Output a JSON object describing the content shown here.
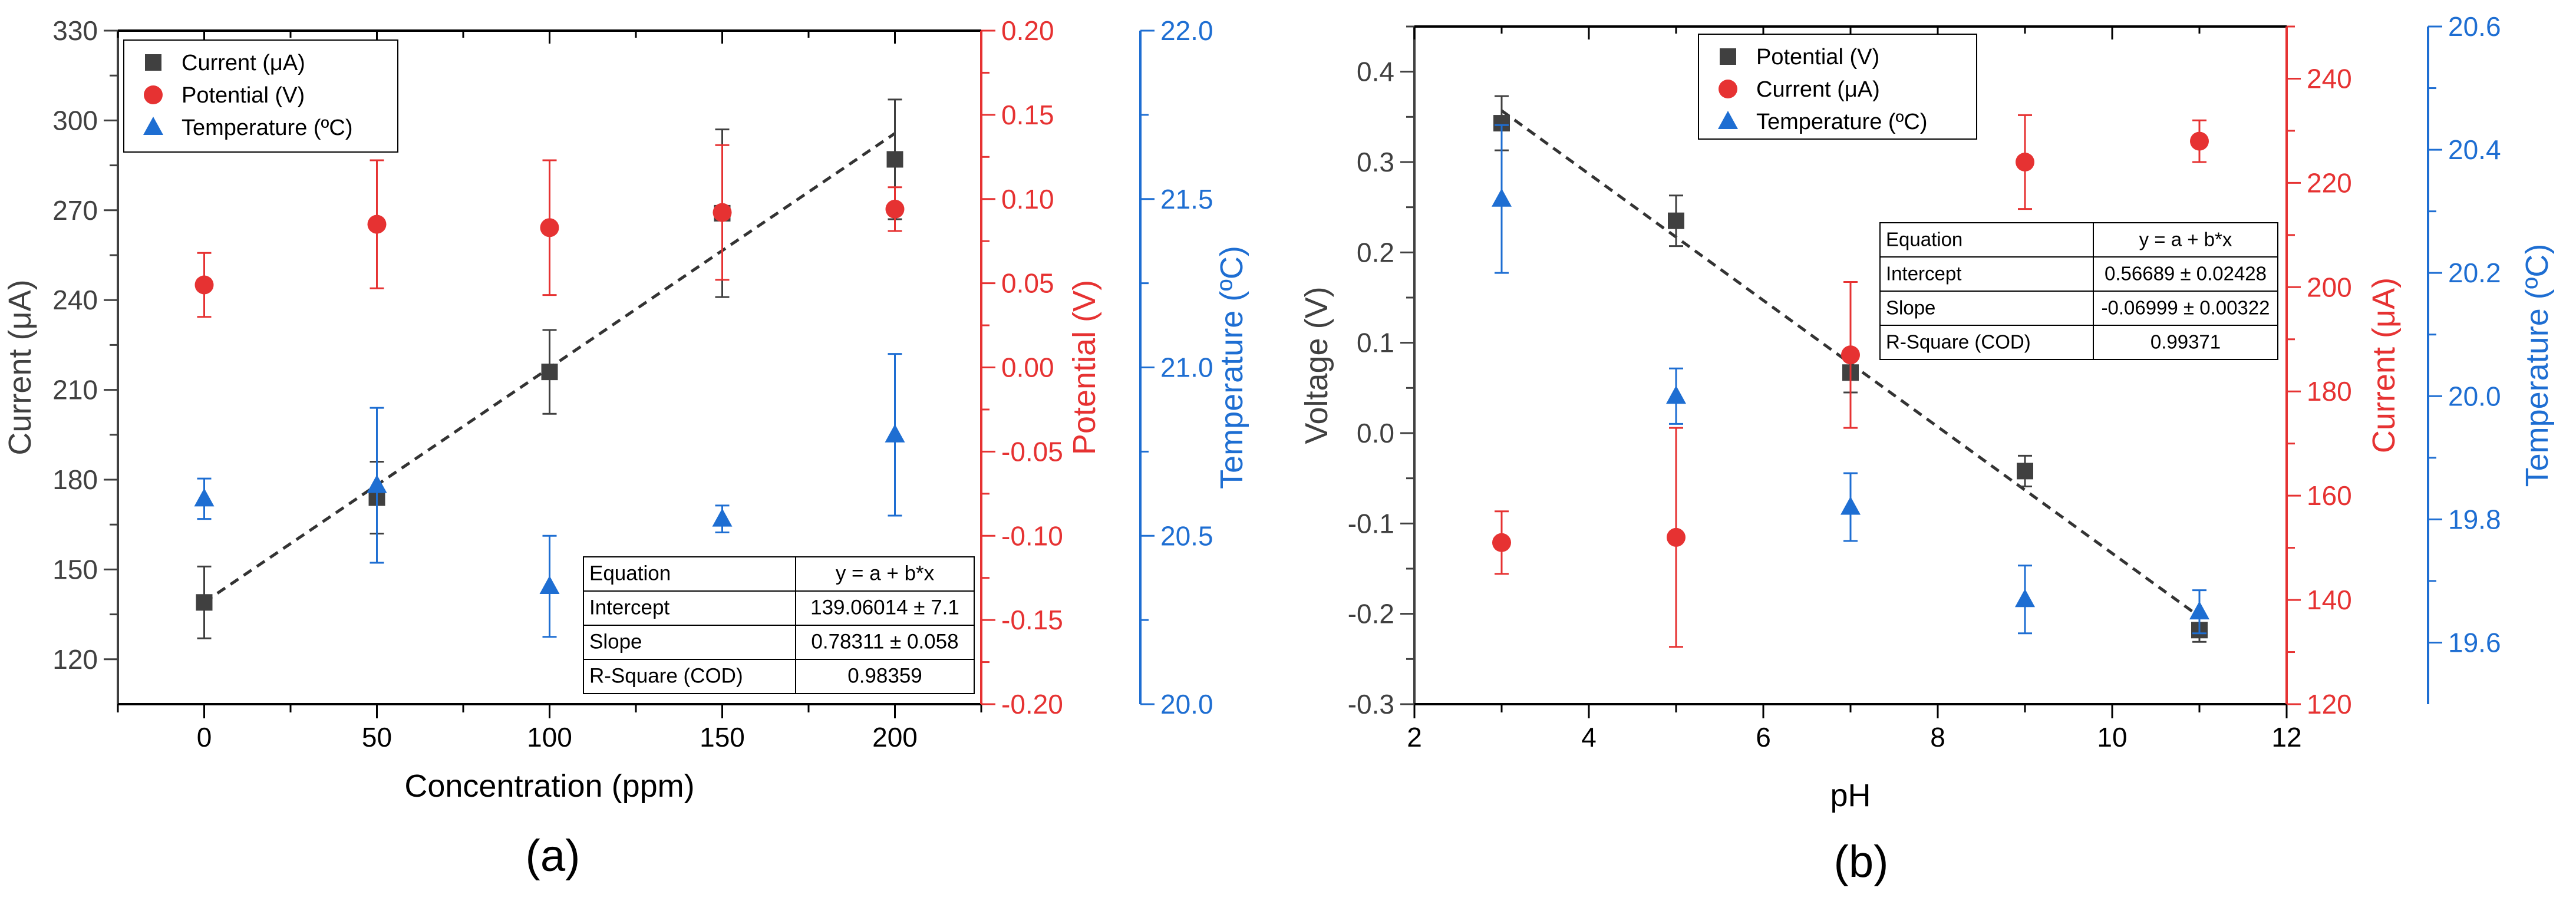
{
  "figure_labels": [
    "(a)",
    "(b)"
  ],
  "chart_data": [
    {
      "type": "scatter",
      "panel_label": "(a)",
      "xlabel": "Concentration (ppm)",
      "xlim": [
        -25,
        225
      ],
      "xticks": [
        0,
        50,
        100,
        150,
        200
      ],
      "x": [
        0,
        50,
        100,
        150,
        200
      ],
      "axes": {
        "left": {
          "label": "Current (μA)",
          "color": "#404040",
          "range": [
            105,
            330
          ],
          "ticks": [
            120,
            150,
            180,
            210,
            240,
            270,
            300,
            330
          ],
          "decimals": 0
        },
        "right1": {
          "label": "Potential (V)",
          "color": "#e63232",
          "range": [
            -0.2,
            0.2
          ],
          "ticks": [
            -0.2,
            -0.15,
            -0.1,
            -0.05,
            0,
            0.05,
            0.1,
            0.15,
            0.2
          ],
          "decimals": 2
        },
        "right2": {
          "label": "Temperature (ºC)",
          "color": "#1e6ed2",
          "range": [
            20.0,
            22.0
          ],
          "ticks": [
            20.0,
            20.5,
            21.0,
            21.5,
            22.0
          ],
          "decimals": 1
        }
      },
      "series": [
        {
          "name": "Current (μA)",
          "axis": "left",
          "marker": "square",
          "color": "#404040",
          "values": [
            139,
            174,
            216,
            269,
            287
          ],
          "errors": [
            12,
            12,
            14,
            28,
            20
          ]
        },
        {
          "name": "Potential (V)",
          "axis": "right1",
          "marker": "circle",
          "color": "#e63232",
          "values": [
            0.049,
            0.085,
            0.083,
            0.092,
            0.094
          ],
          "errors": [
            0.019,
            0.038,
            0.04,
            0.04,
            0.013
          ]
        },
        {
          "name": "Temperature (ºC)",
          "axis": "right2",
          "marker": "triangle",
          "color": "#1e6ed2",
          "values": [
            20.61,
            20.65,
            20.35,
            20.55,
            20.8
          ],
          "errors": [
            0.06,
            0.23,
            0.15,
            0.04,
            0.24
          ]
        }
      ],
      "fit": {
        "axis": "left",
        "x": [
          0,
          200
        ],
        "intercept": 139.06014,
        "slope": 0.78311
      },
      "legend_position": "top-left",
      "fit_table": {
        "position": "bottom-right",
        "rows": [
          [
            "Equation",
            "y = a + b*x"
          ],
          [
            "Intercept",
            "139.06014 ± 7.1"
          ],
          [
            "Slope",
            "0.78311 ± 0.058"
          ],
          [
            "R-Square (COD)",
            "0.98359"
          ]
        ]
      }
    },
    {
      "type": "scatter",
      "panel_label": "(b)",
      "xlabel": "pH",
      "xlim": [
        2,
        12
      ],
      "xticks": [
        2,
        4,
        6,
        8,
        10,
        12
      ],
      "x": [
        3,
        5,
        7,
        9,
        11
      ],
      "axes": {
        "left": {
          "label": "Voltage (V)",
          "color": "#404040",
          "range": [
            -0.3,
            0.45
          ],
          "ticks": [
            -0.3,
            -0.2,
            -0.1,
            0,
            0.1,
            0.2,
            0.3,
            0.4
          ],
          "decimals": 1
        },
        "right1": {
          "label": "Current (μA)",
          "color": "#e63232",
          "range": [
            120,
            250
          ],
          "ticks": [
            120,
            140,
            160,
            180,
            200,
            220,
            240
          ],
          "decimals": 0
        },
        "right2": {
          "label": "Temperature (ºC)",
          "color": "#1e6ed2",
          "range": [
            19.5,
            20.6
          ],
          "ticks": [
            19.6,
            19.8,
            20.0,
            20.2,
            20.4,
            20.6
          ],
          "decimals": 1
        }
      },
      "series": [
        {
          "name": "Potential (V)",
          "axis": "left",
          "marker": "square",
          "color": "#404040",
          "values": [
            0.343,
            0.235,
            0.067,
            -0.042,
            -0.218
          ],
          "errors": [
            0.03,
            0.028,
            0.022,
            0.017,
            0.013
          ]
        },
        {
          "name": "Current (μA)",
          "axis": "right1",
          "marker": "circle",
          "color": "#e63232",
          "values": [
            151,
            152,
            187,
            224,
            228
          ],
          "errors": [
            6,
            21,
            14,
            9,
            4
          ]
        },
        {
          "name": "Temperature (ºC)",
          "axis": "right2",
          "marker": "triangle",
          "color": "#1e6ed2",
          "values": [
            20.32,
            20.0,
            19.82,
            19.67,
            19.65
          ],
          "errors": [
            0.12,
            0.045,
            0.055,
            0.055,
            0.035
          ]
        }
      ],
      "fit": {
        "axis": "left",
        "x": [
          3,
          11
        ],
        "intercept": 0.56689,
        "slope": -0.06999
      },
      "legend_position": "top-center",
      "fit_table": {
        "position": "top-right",
        "rows": [
          [
            "Equation",
            "y = a + b*x"
          ],
          [
            "Intercept",
            "0.56689 ± 0.02428"
          ],
          [
            "Slope",
            "-0.06999 ± 0.00322"
          ],
          [
            "R-Square (COD)",
            "0.99371"
          ]
        ]
      }
    }
  ]
}
